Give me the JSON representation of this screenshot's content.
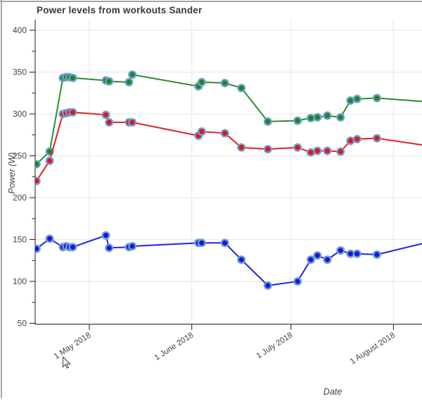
{
  "title": "Power levels from workouts Sander",
  "axes": {
    "x": {
      "label": "Date",
      "ticks": [
        {
          "label": "1 May 2018",
          "date": "2018-05-01"
        },
        {
          "label": "1 June 2018",
          "date": "2018-06-01"
        },
        {
          "label": "1 July 2018",
          "date": "2018-07-01"
        },
        {
          "label": "1 August 2018",
          "date": "2018-08-01"
        }
      ]
    },
    "y": {
      "label": "Power (W)",
      "major_ticks": [
        400,
        350,
        300,
        250,
        200,
        150,
        100,
        50
      ],
      "minor_ticks": [
        375,
        325,
        275,
        225,
        175,
        125,
        75
      ]
    }
  },
  "colors": {
    "green_fill": "#1c871c",
    "green_line": "#2e8b2e",
    "red_fill": "#e41414",
    "red_line": "#e32222",
    "blue_fill": "#1717dd",
    "blue_line": "#2222e6",
    "marker_outline": "#6f9ecf",
    "gridline": "#e6e6e6",
    "axis_line": "#1a1a1a",
    "tick_label": "#444444",
    "title_text": "#3a3a3a",
    "window_border": "#a6a6a6"
  },
  "chart_data": {
    "type": "line",
    "title": "Power levels from workouts Sander",
    "xlabel": "Date",
    "ylabel": "Power (W)",
    "grid": true,
    "legend": "none",
    "marker": "circle",
    "xlim": [
      "2018-04-14",
      "2018-08-09"
    ],
    "ylim": [
      49,
      413
    ],
    "x_dates": [
      "2018-04-15",
      "2018-04-19",
      "2018-04-23",
      "2018-04-24",
      "2018-04-25",
      "2018-04-26",
      "2018-05-06",
      "2018-05-07",
      "2018-05-13",
      "2018-05-14",
      "2018-06-03",
      "2018-06-04",
      "2018-06-11",
      "2018-06-16",
      "2018-06-24",
      "2018-07-03",
      "2018-07-07",
      "2018-07-09",
      "2018-07-12",
      "2018-07-16",
      "2018-07-19",
      "2018-07-21",
      "2018-07-27"
    ],
    "series": [
      {
        "name": "green",
        "color": "#1c871c",
        "line_color": "#2e8b2e",
        "values": [
          240,
          255,
          343,
          344,
          344,
          343,
          340,
          339,
          338,
          347,
          333,
          338,
          337,
          331,
          291,
          292,
          295,
          296,
          298,
          296,
          316,
          318,
          319
        ]
      },
      {
        "name": "red",
        "color": "#e41414",
        "line_color": "#e32222",
        "values": [
          220,
          244,
          300,
          301,
          302,
          302,
          299,
          290,
          290,
          290,
          274,
          279,
          277,
          260,
          258,
          260,
          254,
          256,
          256,
          255,
          268,
          270,
          271
        ]
      },
      {
        "name": "blue",
        "color": "#1717dd",
        "line_color": "#2222e6",
        "values": [
          139,
          151,
          141,
          142,
          141,
          141,
          155,
          140,
          141,
          142,
          146,
          146,
          146,
          126,
          95,
          100,
          126,
          131,
          126,
          137,
          133,
          133,
          132
        ]
      }
    ],
    "lines_continue_to_right_edge": {
      "edge_date": "2018-08-09",
      "values_at_edge": [
        315,
        263,
        145
      ]
    }
  }
}
